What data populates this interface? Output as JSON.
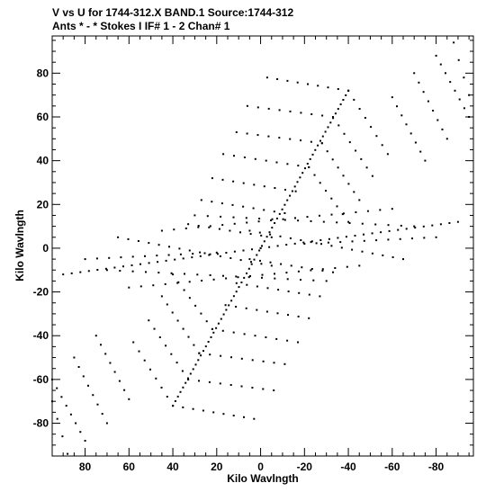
{
  "chart_data": {
    "type": "scatter",
    "title_line1": "V vs U for 1744-312.X BAND.1   Source:1744-312",
    "title_line2": "Ants * - *    Stokes I   IF# 1 - 2   Chan# 1",
    "xlabel": "Kilo Wavlngth",
    "ylabel": "Kilo Wavlngth",
    "xlim": [
      95,
      -97
    ],
    "ylim": [
      -95,
      97
    ],
    "x_ticks": [
      80,
      60,
      40,
      20,
      0,
      -20,
      -40,
      -60,
      -80
    ],
    "x_tick_labels": [
      "80",
      "60",
      "40",
      "20",
      "0",
      "-20",
      "-40",
      "-60",
      "-80"
    ],
    "y_ticks": [
      80,
      60,
      40,
      20,
      0,
      -20,
      -40,
      -60,
      -80
    ],
    "y_tick_labels": [
      "80",
      "60",
      "40",
      "20",
      "0",
      "-20",
      "-40",
      "-60",
      "-80"
    ],
    "point_color": "#000000",
    "description_of_pattern": "uv-coverage tracks: central arm from (40,-72) to (-40,72) plus symmetric tracks",
    "tracks": [
      {
        "from": [
          40,
          -72
        ],
        "to": [
          -40,
          72
        ],
        "n": 70
      },
      {
        "from": [
          0,
          0
        ],
        "to": [
          -15,
          80
        ],
        "n": 0
      },
      {
        "from": [
          -3,
          78
        ],
        "to": [
          -40,
          72
        ],
        "n": 9
      },
      {
        "from": [
          6,
          65
        ],
        "to": [
          -33,
          60
        ],
        "n": 9
      },
      {
        "from": [
          11,
          53
        ],
        "to": [
          -28,
          48
        ],
        "n": 9
      },
      {
        "from": [
          17,
          43
        ],
        "to": [
          -22,
          37
        ],
        "n": 9
      },
      {
        "from": [
          22,
          32
        ],
        "to": [
          -16,
          26
        ],
        "n": 9
      },
      {
        "from": [
          27,
          22
        ],
        "to": [
          -11,
          16
        ],
        "n": 9
      },
      {
        "from": [
          33,
          11
        ],
        "to": [
          -5,
          5
        ],
        "n": 9
      },
      {
        "from": [
          -40,
          72
        ],
        "to": [
          -58,
          43
        ],
        "n": 8
      },
      {
        "from": [
          -33,
          60
        ],
        "to": [
          -51,
          33
        ],
        "n": 8
      },
      {
        "from": [
          -28,
          48
        ],
        "to": [
          -45,
          22
        ],
        "n": 8
      },
      {
        "from": [
          -22,
          37
        ],
        "to": [
          -40,
          12
        ],
        "n": 8
      },
      {
        "from": [
          -60,
          69
        ],
        "to": [
          -75,
          40
        ],
        "n": 8
      },
      {
        "from": [
          -70,
          80
        ],
        "to": [
          -85,
          50
        ],
        "n": 8
      },
      {
        "from": [
          -80,
          88
        ],
        "to": [
          -95,
          60
        ],
        "n": 8
      },
      {
        "from": [
          -88,
          94
        ],
        "to": [
          -95,
          70
        ],
        "n": 4
      },
      {
        "from": [
          3,
          -78
        ],
        "to": [
          40,
          -72
        ],
        "n": 9
      },
      {
        "from": [
          -6,
          -65
        ],
        "to": [
          33,
          -60
        ],
        "n": 9
      },
      {
        "from": [
          -11,
          -53
        ],
        "to": [
          28,
          -48
        ],
        "n": 9
      },
      {
        "from": [
          -17,
          -43
        ],
        "to": [
          22,
          -37
        ],
        "n": 9
      },
      {
        "from": [
          -22,
          -32
        ],
        "to": [
          16,
          -26
        ],
        "n": 9
      },
      {
        "from": [
          -27,
          -22
        ],
        "to": [
          11,
          -16
        ],
        "n": 9
      },
      {
        "from": [
          -33,
          -11
        ],
        "to": [
          5,
          -5
        ],
        "n": 9
      },
      {
        "from": [
          40,
          -72
        ],
        "to": [
          58,
          -43
        ],
        "n": 8
      },
      {
        "from": [
          33,
          -60
        ],
        "to": [
          51,
          -33
        ],
        "n": 8
      },
      {
        "from": [
          28,
          -48
        ],
        "to": [
          45,
          -22
        ],
        "n": 8
      },
      {
        "from": [
          22,
          -37
        ],
        "to": [
          40,
          -12
        ],
        "n": 8
      },
      {
        "from": [
          60,
          -69
        ],
        "to": [
          75,
          -40
        ],
        "n": 8
      },
      {
        "from": [
          70,
          -80
        ],
        "to": [
          85,
          -50
        ],
        "n": 8
      },
      {
        "from": [
          80,
          -88
        ],
        "to": [
          95,
          -60
        ],
        "n": 8
      },
      {
        "from": [
          88,
          -94
        ],
        "to": [
          95,
          -70
        ],
        "n": 4
      },
      {
        "from": [
          90,
          -12
        ],
        "to": [
          0,
          0
        ],
        "n": 24
      },
      {
        "from": [
          -90,
          12
        ],
        "to": [
          0,
          0
        ],
        "n": 24
      },
      {
        "from": [
          80,
          -5
        ],
        "to": [
          20,
          -2
        ],
        "n": 12
      },
      {
        "from": [
          -80,
          5
        ],
        "to": [
          -20,
          2
        ],
        "n": 12
      },
      {
        "from": [
          65,
          5
        ],
        "to": [
          -5,
          -8
        ],
        "n": 16
      },
      {
        "from": [
          -65,
          -5
        ],
        "to": [
          5,
          8
        ],
        "n": 16
      },
      {
        "from": [
          45,
          8
        ],
        "to": [
          -60,
          18
        ],
        "n": 20
      },
      {
        "from": [
          -45,
          -8
        ],
        "to": [
          60,
          -18
        ],
        "n": 20
      },
      {
        "from": [
          30,
          15
        ],
        "to": [
          -70,
          10
        ],
        "n": 18
      },
      {
        "from": [
          -30,
          -15
        ],
        "to": [
          70,
          -10
        ],
        "n": 18
      }
    ]
  }
}
